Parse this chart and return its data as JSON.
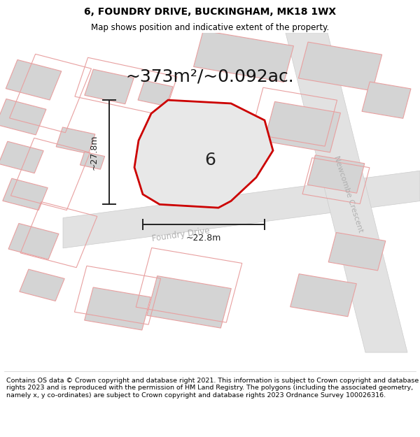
{
  "title": "6, FOUNDRY DRIVE, BUCKINGHAM, MK18 1WX",
  "subtitle": "Map shows position and indicative extent of the property.",
  "area_label": "~373m²/~0.092ac.",
  "plot_number": "6",
  "dim_width": "~22.8m",
  "dim_height": "~27.8m",
  "street1": "Foundry Drive",
  "street2": "Newcombe Crescent",
  "footer": "Contains OS data © Crown copyright and database right 2021. This information is subject to Crown copyright and database rights 2023 and is reproduced with the permission of HM Land Registry. The polygons (including the associated geometry, namely x, y co-ordinates) are subject to Crown copyright and database rights 2023 Ordnance Survey 100026316.",
  "map_bg": "#f0f0f0",
  "plot_fill": "#e8e8e8",
  "plot_edge": "#cc0000",
  "building_fill": "#d4d4d4",
  "building_edge": "#e8a0a0",
  "road_fill": "#e0e0e0",
  "dim_color": "#222222",
  "street_color": "#b0b0b0",
  "title_fontsize": 10,
  "subtitle_fontsize": 8.5,
  "area_fontsize": 18,
  "plot_num_fontsize": 18
}
